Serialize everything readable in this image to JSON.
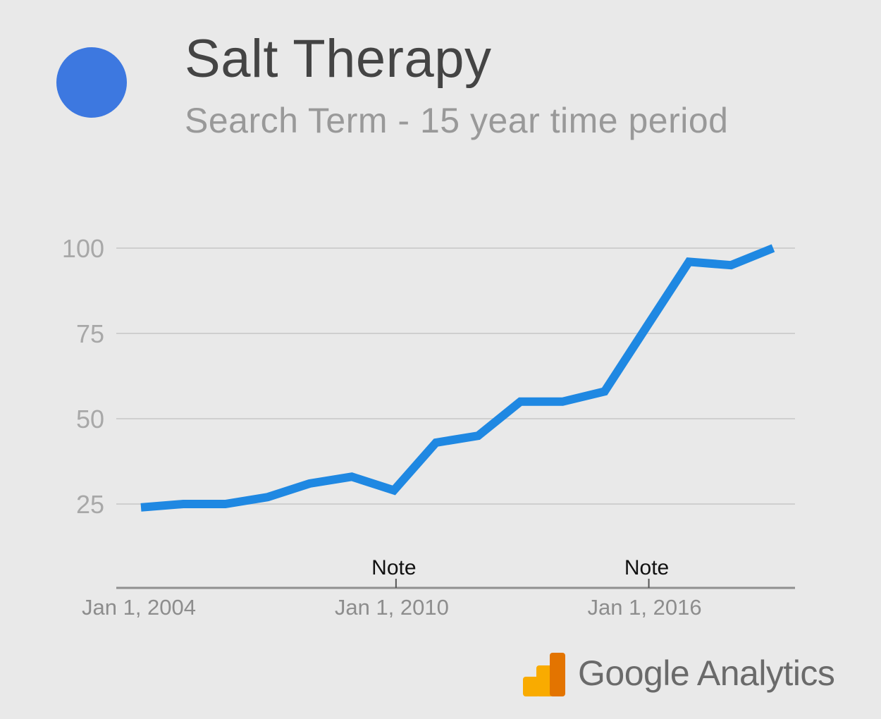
{
  "header": {
    "title": "Salt Therapy",
    "subtitle": "Search Term - 15 year time period",
    "legend_color": "#3d78e0"
  },
  "chart_data": {
    "type": "line",
    "series": [
      {
        "color": "#1f88e2",
        "x": [
          "2004-01-01",
          "2005-01-01",
          "2006-01-01",
          "2007-01-01",
          "2008-01-01",
          "2009-01-01",
          "2010-01-01",
          "2011-01-01",
          "2012-01-01",
          "2013-01-01",
          "2014-01-01",
          "2015-01-01",
          "2016-01-01",
          "2017-01-01",
          "2018-01-01",
          "2019-01-01"
        ],
        "values": [
          24,
          25,
          25,
          27,
          31,
          33,
          29,
          43,
          45,
          55,
          55,
          58,
          77,
          96,
          95,
          100
        ]
      }
    ],
    "yticks": [
      100,
      75,
      50,
      25
    ],
    "ylim": [
      0,
      100
    ],
    "xtick_labels": [
      {
        "x": "2004-01-01",
        "label": "Jan 1, 2004"
      },
      {
        "x": "2010-01-01",
        "label": "Jan 1, 2010"
      },
      {
        "x": "2016-01-01",
        "label": "Jan 1, 2016"
      }
    ],
    "annotations": [
      {
        "x": "2010-01-01",
        "label": "Note"
      },
      {
        "x": "2016-01-01",
        "label": "Note"
      }
    ],
    "grid": true
  },
  "branding": {
    "name": "Google Analytics",
    "icon": "google-analytics-logo-icon"
  }
}
